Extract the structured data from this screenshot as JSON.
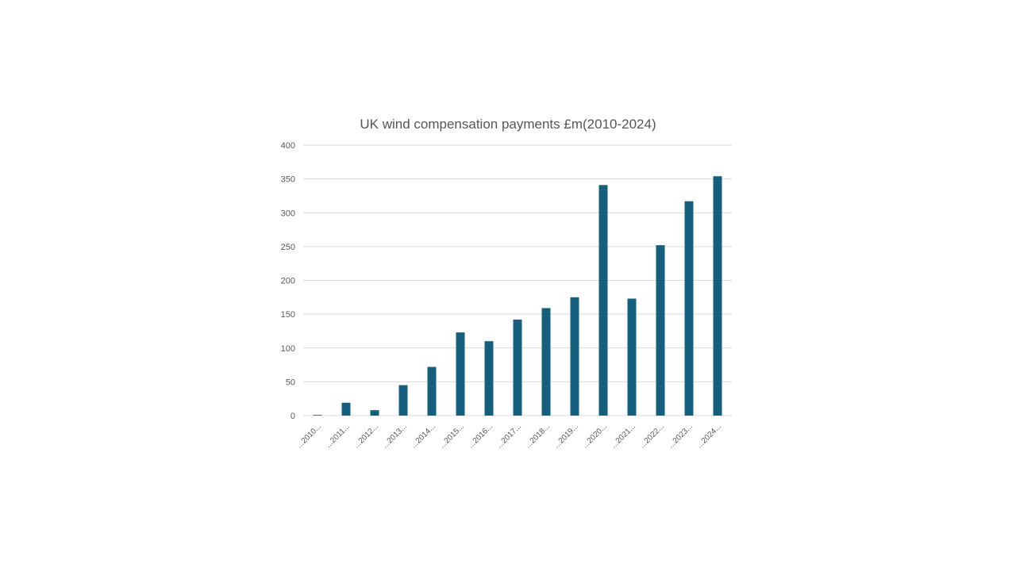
{
  "chart_data": {
    "type": "bar",
    "title": "UK wind compensation payments £m(2010-2024)",
    "xlabel": "",
    "ylabel": "",
    "ylim": [
      0,
      400
    ],
    "yticks": [
      0,
      50,
      100,
      150,
      200,
      250,
      300,
      350,
      400
    ],
    "grid": true,
    "legend": "none",
    "categories": [
      "...2010...",
      "...2011...",
      "...2012...",
      "...2013...",
      "...2014...",
      "...2015...",
      "...2016...",
      "...2017...",
      "...2018...",
      "...2019...",
      "...2020...",
      "...2021...",
      "...2022...",
      "...2023...",
      "...2024..."
    ],
    "series": [
      {
        "color": "#17607d",
        "values": [
          1,
          19,
          8,
          45,
          72,
          123,
          110,
          142,
          159,
          175,
          341,
          173,
          252,
          317,
          354
        ]
      }
    ]
  }
}
